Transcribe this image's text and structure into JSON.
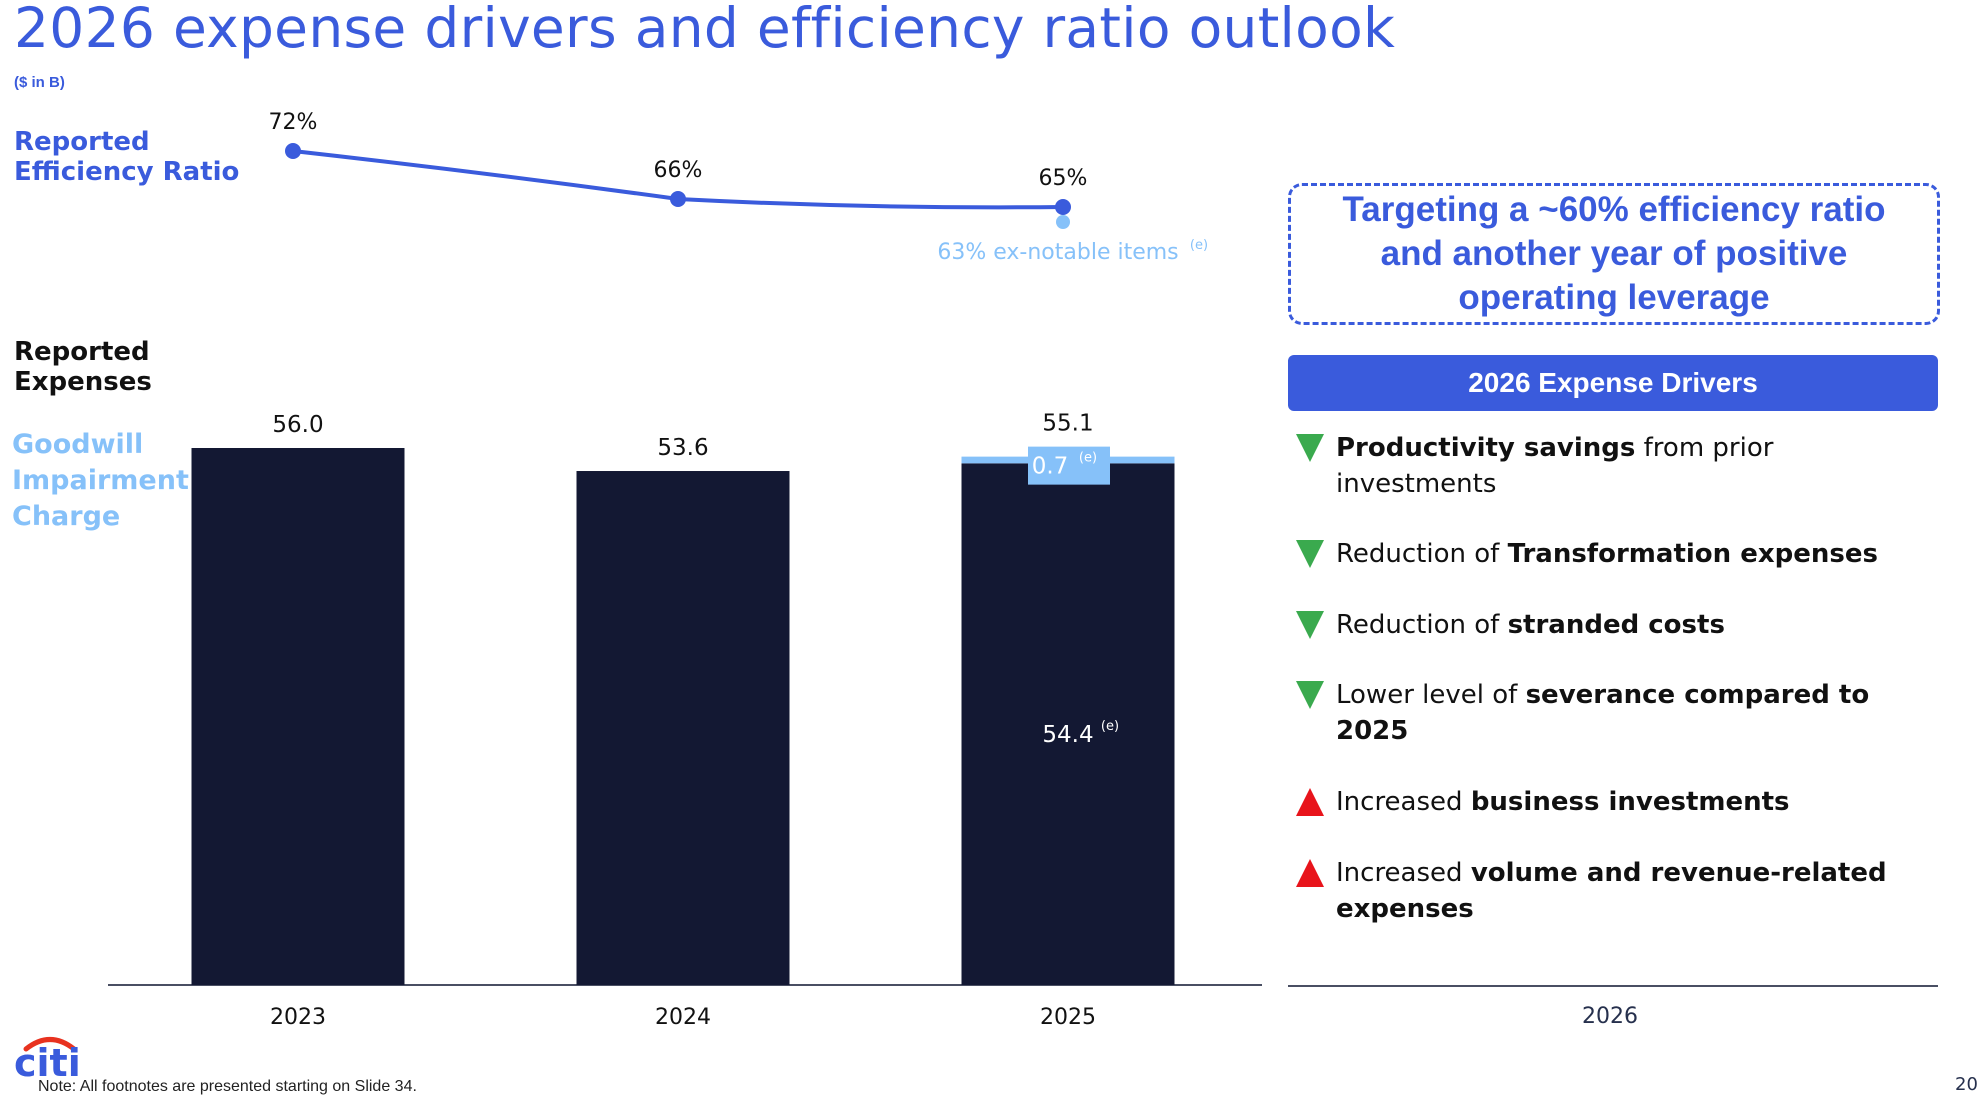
{
  "title": "2026 expense drivers and efficiency ratio outlook",
  "units": "($ in B)",
  "labels": {
    "efficiency_ratio": [
      "Reported",
      "Efficiency Ratio"
    ],
    "expenses": [
      "Reported",
      "Expenses"
    ],
    "goodwill": [
      "Goodwill",
      "Impairment",
      "Charge"
    ]
  },
  "chart_data": [
    {
      "type": "line",
      "title": "Reported Efficiency Ratio",
      "categories": [
        "2023",
        "2024",
        "2025"
      ],
      "values": [
        72,
        66,
        65
      ],
      "value_labels": [
        "72%",
        "66%",
        "65%"
      ],
      "annotation": {
        "category": "2025",
        "value": 63,
        "text": "63% ex-notable items",
        "superscript": "(e)"
      },
      "color": "#3a5bdc",
      "annotation_color": "#86c1f9"
    },
    {
      "type": "bar",
      "title": "Reported Expenses",
      "categories": [
        "2023",
        "2024",
        "2025"
      ],
      "series": [
        {
          "name": "Expenses",
          "values": [
            56.0,
            53.6,
            54.4
          ],
          "color": "#131833"
        },
        {
          "name": "Goodwill Impairment Charge",
          "values": [
            0,
            0,
            0.7
          ],
          "color": "#86c1f9"
        }
      ],
      "totals": [
        "56.0",
        "53.6",
        "55.1"
      ],
      "inner_labels": {
        "2025": {
          "expenses": "54.4",
          "expenses_sup": "(e)",
          "goodwill": "0.7",
          "goodwill_sup": "(e)"
        }
      },
      "ylim": [
        0,
        56.0
      ]
    }
  ],
  "target": "Targeting a ~60% efficiency ratio and another year of positive operating leverage",
  "drivers_header": "2026 Expense Drivers",
  "drivers": [
    {
      "direction": "down",
      "parts": [
        {
          "b": true,
          "t": "Productivity savings"
        },
        {
          "b": false,
          "t": " from prior investments"
        }
      ]
    },
    {
      "direction": "down",
      "parts": [
        {
          "b": false,
          "t": "Reduction of "
        },
        {
          "b": true,
          "t": "Transformation expenses"
        }
      ]
    },
    {
      "direction": "down",
      "parts": [
        {
          "b": false,
          "t": "Reduction of "
        },
        {
          "b": true,
          "t": "stranded costs"
        }
      ]
    },
    {
      "direction": "down",
      "parts": [
        {
          "b": false,
          "t": "Lower level of "
        },
        {
          "b": true,
          "t": "severance compared to 2025"
        }
      ]
    },
    {
      "direction": "up",
      "parts": [
        {
          "b": false,
          "t": "Increased "
        },
        {
          "b": true,
          "t": "business investments"
        }
      ]
    },
    {
      "direction": "up",
      "parts": [
        {
          "b": false,
          "t": "Increased "
        },
        {
          "b": true,
          "t": "volume and revenue-related expenses"
        }
      ]
    }
  ],
  "colors": {
    "down": "#3aaa4e",
    "up": "#e8141b",
    "brand": "#3a5bdc",
    "logo_arc": "#e8321f"
  },
  "right_category": "2026",
  "logo_text": "citi",
  "note": "Note:  All footnotes are presented starting on Slide 34.",
  "page_number": "20"
}
